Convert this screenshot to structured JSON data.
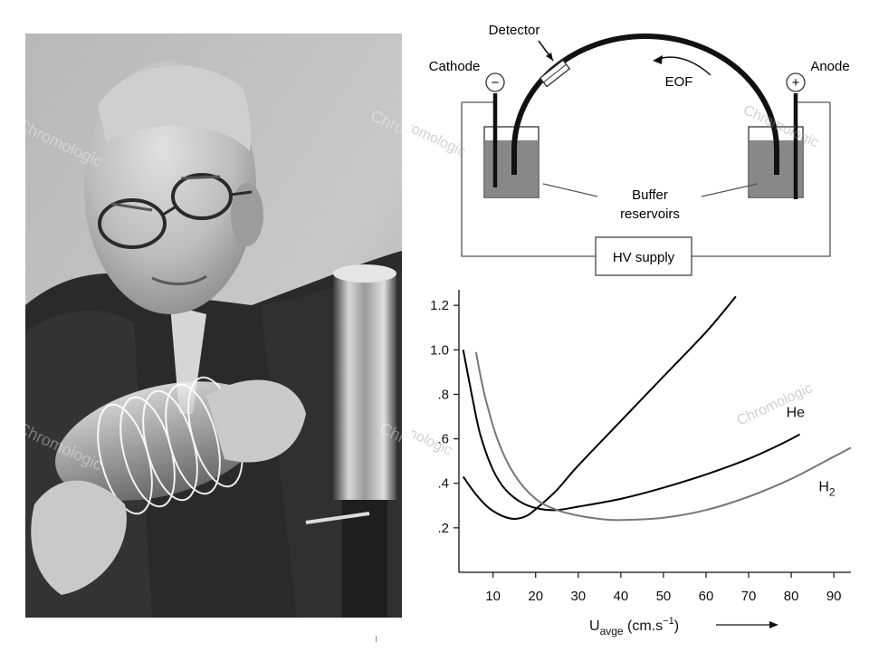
{
  "photo": {
    "description_icon": "portrait-photo-icon",
    "watermark": "Chromologic"
  },
  "diagram": {
    "labels": {
      "detector": "Detector",
      "cathode": "Cathode",
      "anode": "Anode",
      "eof": "EOF",
      "minus": "−",
      "plus": "+",
      "buffer_line1": "Buffer",
      "buffer_line2": "reservoirs",
      "hv_supply": "HV supply"
    },
    "watermark": "Chromologic"
  },
  "chart_data": {
    "type": "line",
    "title": "",
    "xlabel_main": "U",
    "xlabel_sub": "avge",
    "xlabel_unit": " (cm.s",
    "xlabel_exp": "−1",
    "xlabel_close": ")",
    "ylabel": "",
    "xlim": [
      2,
      94
    ],
    "ylim": [
      0,
      1.27
    ],
    "x_ticks": [
      "10",
      "20",
      "30",
      "40",
      "50",
      "60",
      "70",
      "80",
      "90"
    ],
    "x_tick_values": [
      10,
      20,
      30,
      40,
      50,
      60,
      70,
      80,
      90
    ],
    "y_ticks": [
      ".2",
      ".4",
      ".6",
      ".8",
      "1.0",
      "1.2"
    ],
    "y_tick_values": [
      0.2,
      0.4,
      0.6,
      0.8,
      1.0,
      1.2
    ],
    "series": [
      {
        "name": "",
        "color": "#000000",
        "points": [
          [
            3,
            0.43
          ],
          [
            6,
            0.35
          ],
          [
            9,
            0.29
          ],
          [
            12,
            0.255
          ],
          [
            15,
            0.24
          ],
          [
            18,
            0.255
          ],
          [
            21,
            0.3
          ],
          [
            25,
            0.37
          ],
          [
            30,
            0.48
          ],
          [
            40,
            0.68
          ],
          [
            50,
            0.88
          ],
          [
            60,
            1.08
          ],
          [
            67,
            1.24
          ]
        ]
      },
      {
        "name": "He",
        "color": "#000000",
        "points": [
          [
            3,
            1.0
          ],
          [
            5,
            0.8
          ],
          [
            7,
            0.62
          ],
          [
            10,
            0.46
          ],
          [
            13,
            0.37
          ],
          [
            17,
            0.31
          ],
          [
            21,
            0.285
          ],
          [
            25,
            0.28
          ],
          [
            30,
            0.295
          ],
          [
            40,
            0.33
          ],
          [
            50,
            0.38
          ],
          [
            60,
            0.44
          ],
          [
            70,
            0.51
          ],
          [
            78,
            0.58
          ],
          [
            82,
            0.62
          ]
        ]
      },
      {
        "name": "H₂",
        "color": "#777777",
        "points": [
          [
            6,
            0.99
          ],
          [
            8,
            0.8
          ],
          [
            11,
            0.6
          ],
          [
            15,
            0.44
          ],
          [
            20,
            0.33
          ],
          [
            25,
            0.28
          ],
          [
            30,
            0.255
          ],
          [
            35,
            0.24
          ],
          [
            40,
            0.235
          ],
          [
            50,
            0.245
          ],
          [
            60,
            0.28
          ],
          [
            70,
            0.34
          ],
          [
            80,
            0.42
          ],
          [
            90,
            0.52
          ],
          [
            94,
            0.56
          ]
        ]
      }
    ],
    "series_labels": {
      "he": "He",
      "h2_main": "H",
      "h2_sub": "2"
    },
    "watermark": "Chromologic"
  }
}
